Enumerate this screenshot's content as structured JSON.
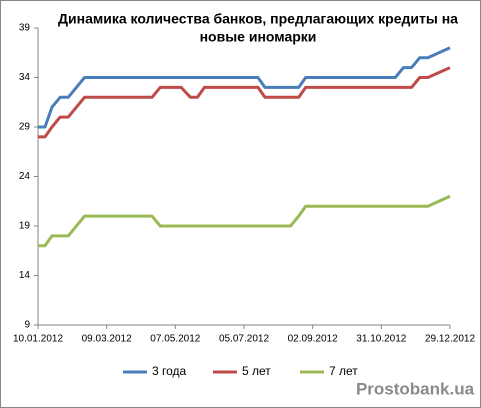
{
  "chart_data": {
    "type": "line",
    "title": [
      "Динамика количества банков, предлагающих кредиты на",
      "новые иномарки"
    ],
    "x": [
      "10.01.2012",
      "16.01.2012",
      "22.01.2012",
      "29.01.2012",
      "05.02.2012",
      "19.02.2012",
      "17.04.2012",
      "24.04.2012",
      "12.05.2012",
      "20.05.2012",
      "26.05.2012",
      "01.06.2012",
      "17.07.2012",
      "23.07.2012",
      "14.08.2012",
      "21.08.2012",
      "27.08.2012",
      "12.11.2012",
      "19.11.2012",
      "26.11.2012",
      "03.12.2012",
      "10.12.2012",
      "29.12.2012"
    ],
    "series": [
      {
        "name": "3 года",
        "color": "#4a7ebb",
        "values": [
          29,
          29,
          31,
          32,
          32,
          34,
          34,
          34,
          34,
          34,
          34,
          34,
          34,
          33,
          33,
          33,
          34,
          34,
          35,
          35,
          36,
          36,
          37
        ]
      },
      {
        "name": "5 лет",
        "color": "#be4b48",
        "values": [
          28,
          28,
          29,
          30,
          30,
          32,
          32,
          33,
          33,
          32,
          32,
          33,
          33,
          32,
          32,
          32,
          33,
          33,
          33,
          33,
          34,
          34,
          35
        ]
      },
      {
        "name": "7 лет",
        "color": "#98b954",
        "values": [
          17,
          17,
          18,
          18,
          18,
          20,
          20,
          19,
          19,
          19,
          19,
          19,
          19,
          19,
          19,
          20,
          21,
          21,
          21,
          21,
          21,
          21,
          22
        ]
      }
    ],
    "xlim": [
      "10.01.2012",
      "29.12.2012"
    ],
    "xticks": [
      "10.01.2012",
      "09.03.2012",
      "07.05.2012",
      "05.07.2012",
      "02.09.2012",
      "31.10.2012",
      "29.12.2012"
    ],
    "ylim": [
      9,
      39
    ],
    "yticks": [
      9,
      14,
      19,
      24,
      29,
      34,
      39
    ],
    "grid": false,
    "legend": "bottom",
    "watermark": "Prostobank.ua"
  }
}
